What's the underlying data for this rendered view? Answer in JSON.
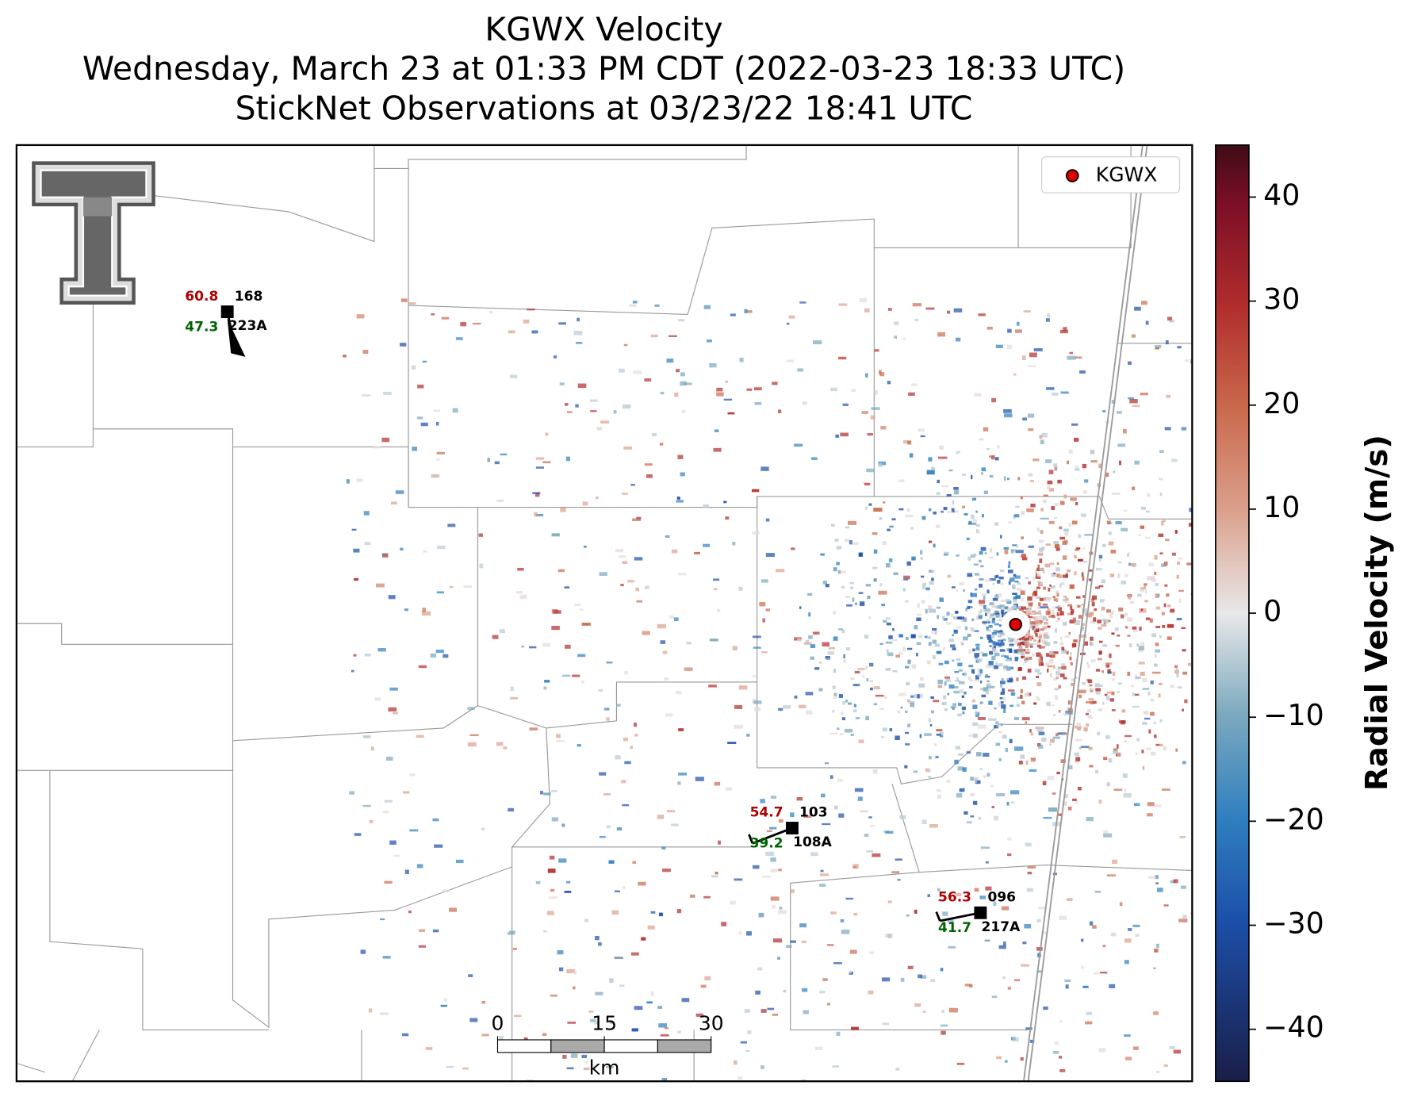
{
  "title": {
    "lines": [
      "KGWX Velocity",
      "Wednesday, March 23 at 01:33 PM CDT (2022-03-23 18:33 UTC)",
      "StickNet Observations at 03/23/22 18:41 UTC"
    ]
  },
  "legend": {
    "label": "KGWX"
  },
  "colorbar": {
    "label": "Radial Velocity (m/s)",
    "lim": [
      -45,
      45
    ],
    "ticks": [
      {
        "value": -40,
        "label": "−40"
      },
      {
        "value": -30,
        "label": "−30"
      },
      {
        "value": -20,
        "label": "−20"
      },
      {
        "value": -10,
        "label": "−10"
      },
      0,
      10,
      20,
      30,
      40
    ]
  },
  "stations": [
    {
      "temperature": 60.8,
      "dewpoint": 47.3,
      "pressure": 168,
      "id": "223A"
    },
    {
      "temperature": 54.7,
      "dewpoint": 39.2,
      "pressure": 103,
      "id": "108A"
    },
    {
      "temperature": 56.3,
      "dewpoint": 41.7,
      "pressure": "096",
      "id": "217A"
    }
  ],
  "scale_bar": {
    "ticks": [
      0,
      15,
      30
    ],
    "unit": "km"
  }
}
